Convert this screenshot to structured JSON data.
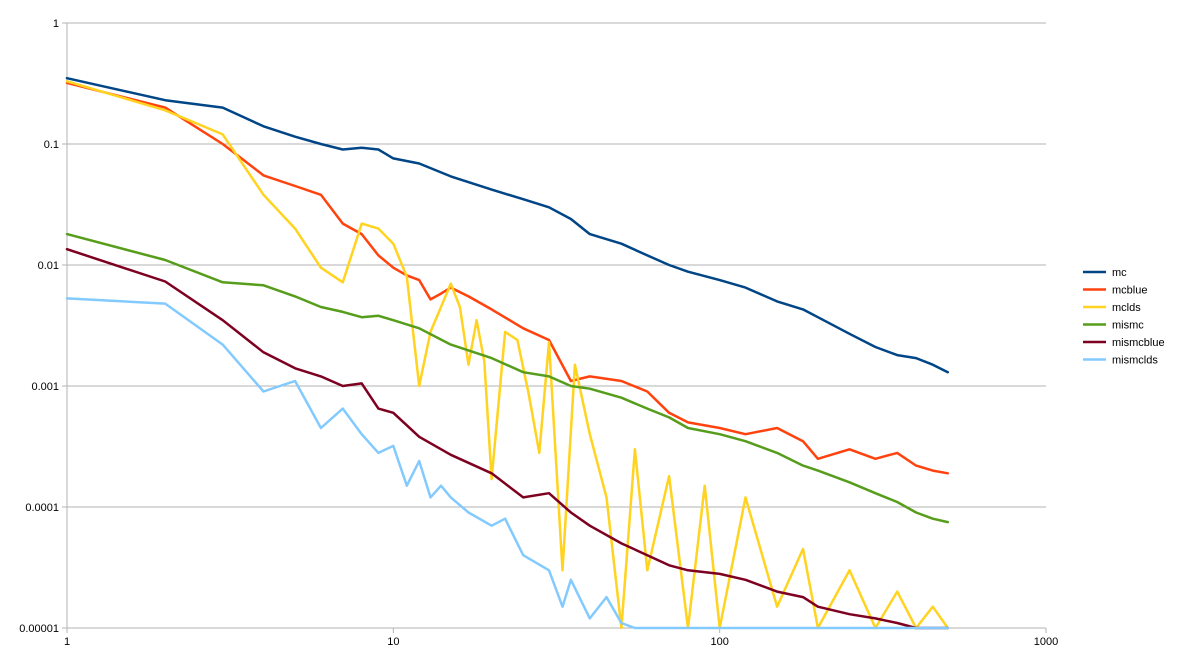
{
  "chart_data": {
    "type": "line",
    "title": "",
    "xlabel": "",
    "ylabel": "",
    "x_scale": "log",
    "y_scale": "log",
    "xlim": [
      1,
      1000
    ],
    "ylim": [
      1e-05,
      1
    ],
    "x_ticks": [
      "1",
      "10",
      "100",
      "1000"
    ],
    "y_ticks": [
      "1",
      "0.1",
      "0.01",
      "0.001",
      "0.0001",
      "0.00001"
    ],
    "grid": "horizontal",
    "legend_position": "right",
    "series": [
      {
        "name": "mc",
        "color": "#004586",
        "x": [
          1,
          2,
          3,
          4,
          5,
          6,
          7,
          8,
          9,
          10,
          12,
          15,
          20,
          25,
          30,
          35,
          40,
          50,
          60,
          70,
          80,
          100,
          120,
          150,
          180,
          200,
          250,
          300,
          350,
          400,
          450,
          500
        ],
        "y": [
          0.35,
          0.23,
          0.2,
          0.14,
          0.115,
          0.1,
          0.09,
          0.093,
          0.09,
          0.076,
          0.069,
          0.054,
          0.042,
          0.035,
          0.03,
          0.024,
          0.018,
          0.015,
          0.012,
          0.01,
          0.0088,
          0.0075,
          0.0065,
          0.005,
          0.0043,
          0.0037,
          0.0027,
          0.0021,
          0.0018,
          0.0017,
          0.0015,
          0.0013
        ]
      },
      {
        "name": "mcblue",
        "color": "#ff420e",
        "x": [
          1,
          2,
          3,
          4,
          5,
          6,
          7,
          8,
          9,
          10,
          11,
          12,
          13,
          14,
          15,
          17,
          20,
          25,
          30,
          35,
          40,
          50,
          60,
          70,
          80,
          100,
          120,
          150,
          180,
          200,
          250,
          300,
          350,
          400,
          450,
          500
        ],
        "y": [
          0.32,
          0.2,
          0.1,
          0.055,
          0.045,
          0.038,
          0.022,
          0.018,
          0.012,
          0.0095,
          0.0082,
          0.0075,
          0.0052,
          0.0058,
          0.0065,
          0.0055,
          0.0043,
          0.003,
          0.0024,
          0.0011,
          0.0012,
          0.0011,
          0.0009,
          0.0006,
          0.0005,
          0.00045,
          0.0004,
          0.00045,
          0.00035,
          0.00025,
          0.0003,
          0.00025,
          0.00028,
          0.00022,
          0.0002,
          0.00019
        ]
      },
      {
        "name": "mclds",
        "color": "#ffd320",
        "x": [
          1,
          2,
          3,
          4,
          5,
          6,
          7,
          8,
          9,
          10,
          11,
          12,
          13,
          14,
          15,
          16,
          17,
          18,
          19,
          20,
          22,
          24,
          26,
          28,
          30,
          33,
          36,
          40,
          45,
          50,
          55,
          60,
          70,
          80,
          90,
          100,
          120,
          150,
          180,
          200,
          250,
          300,
          350,
          400,
          450,
          500
        ],
        "y": [
          0.33,
          0.19,
          0.12,
          0.038,
          0.02,
          0.0095,
          0.0072,
          0.022,
          0.02,
          0.015,
          0.008,
          0.001,
          0.0028,
          0.0045,
          0.007,
          0.0045,
          0.0015,
          0.0035,
          0.0016,
          0.00017,
          0.0028,
          0.0024,
          0.00085,
          0.00028,
          0.0023,
          3e-05,
          0.0015,
          0.0004,
          0.00012,
          1e-05,
          0.0003,
          3e-05,
          0.00018,
          1e-05,
          0.00015,
          1e-05,
          0.00012,
          1.5e-05,
          4.5e-05,
          1e-05,
          3e-05,
          1e-05,
          2e-05,
          1e-05,
          1.5e-05,
          1e-05
        ]
      },
      {
        "name": "mismc",
        "color": "#579d1c",
        "x": [
          1,
          2,
          3,
          4,
          5,
          6,
          7,
          8,
          9,
          10,
          12,
          15,
          20,
          25,
          30,
          35,
          40,
          50,
          60,
          70,
          80,
          100,
          120,
          150,
          180,
          200,
          250,
          300,
          350,
          400,
          450,
          500
        ],
        "y": [
          0.018,
          0.011,
          0.0072,
          0.0068,
          0.0055,
          0.0045,
          0.0041,
          0.0037,
          0.0038,
          0.0035,
          0.003,
          0.0022,
          0.0017,
          0.0013,
          0.0012,
          0.001,
          0.00095,
          0.0008,
          0.00065,
          0.00055,
          0.00045,
          0.0004,
          0.00035,
          0.00028,
          0.00022,
          0.0002,
          0.00016,
          0.00013,
          0.00011,
          9e-05,
          8e-05,
          7.5e-05
        ]
      },
      {
        "name": "mismcblue",
        "color": "#7e0021",
        "x": [
          1,
          2,
          3,
          4,
          5,
          6,
          7,
          8,
          9,
          10,
          12,
          15,
          20,
          25,
          30,
          35,
          40,
          50,
          60,
          70,
          80,
          100,
          120,
          150,
          180,
          200,
          250,
          300,
          350,
          400,
          450,
          500
        ],
        "y": [
          0.0135,
          0.0073,
          0.0035,
          0.0019,
          0.0014,
          0.0012,
          0.001,
          0.00105,
          0.00065,
          0.0006,
          0.00038,
          0.00027,
          0.00019,
          0.00012,
          0.00013,
          9e-05,
          7e-05,
          5e-05,
          4e-05,
          3.3e-05,
          3e-05,
          2.8e-05,
          2.5e-05,
          2e-05,
          1.8e-05,
          1.5e-05,
          1.3e-05,
          1.2e-05,
          1.1e-05,
          1e-05,
          1e-05,
          1e-05
        ]
      },
      {
        "name": "mismclds",
        "color": "#83caff",
        "x": [
          1,
          2,
          3,
          4,
          5,
          6,
          7,
          8,
          9,
          10,
          11,
          12,
          13,
          14,
          15,
          17,
          20,
          22,
          25,
          30,
          33,
          35,
          40,
          45,
          50,
          55,
          60,
          70,
          80,
          100,
          150,
          200,
          300,
          500
        ],
        "y": [
          0.0053,
          0.0048,
          0.0022,
          0.0009,
          0.0011,
          0.00045,
          0.00065,
          0.0004,
          0.00028,
          0.00032,
          0.00015,
          0.00024,
          0.00012,
          0.00015,
          0.00012,
          9e-05,
          7e-05,
          8e-05,
          4e-05,
          3e-05,
          1.5e-05,
          2.5e-05,
          1.2e-05,
          1.8e-05,
          1.1e-05,
          1e-05,
          1e-05,
          1e-05,
          1e-05,
          1e-05,
          1e-05,
          1e-05,
          1e-05,
          1e-05
        ]
      }
    ]
  }
}
